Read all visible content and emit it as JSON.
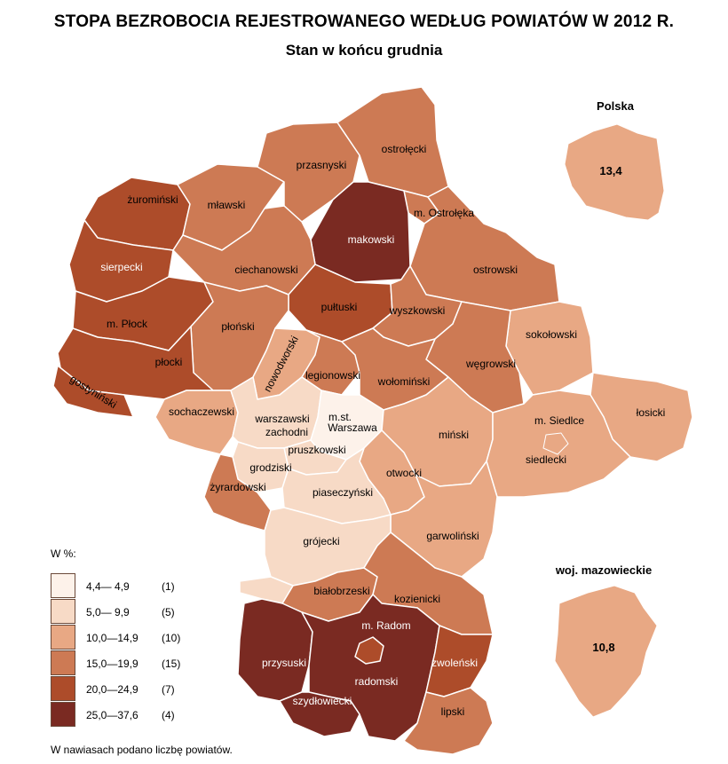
{
  "title": "STOPA BEZROBOCIA REJESTROWANEGO WEDŁUG POWIATÓW W 2012 R.",
  "subtitle": "Stan w końcu grudnia",
  "colors": {
    "c1": "#fdf2ea",
    "c2": "#f7dac6",
    "c3": "#e8a884",
    "c4": "#cd7a54",
    "c5": "#ad4c2a",
    "c6": "#7a2a22",
    "border": "#ffffff"
  },
  "inset_poland": {
    "title": "Polska",
    "value": "13,4"
  },
  "inset_mazowieckie": {
    "title": "woj. mazowieckie",
    "value": "10,8"
  },
  "legend": {
    "title": "W %:",
    "items": [
      {
        "range": "4,4— 4,9",
        "count": "(1)",
        "color": "#fdf2ea"
      },
      {
        "range": "5,0— 9,9",
        "count": "(5)",
        "color": "#f7dac6"
      },
      {
        "range": "10,0—14,9",
        "count": "(10)",
        "color": "#e8a884"
      },
      {
        "range": "15,0—19,9",
        "count": "(15)",
        "color": "#cd7a54"
      },
      {
        "range": "20,0—24,9",
        "count": "(7)",
        "color": "#ad4c2a"
      },
      {
        "range": "25,0—37,6",
        "count": "(4)",
        "color": "#7a2a22"
      }
    ]
  },
  "footnote": "W nawiasach podano liczbę powiatów.",
  "regions": {
    "zurominski": "żuromiński",
    "mlawski": "mławski",
    "przasnyski": "przasnyski",
    "ostrolecki": "ostrołęcki",
    "m_ostroleka": "m. Ostrołęka",
    "makowski": "makowski",
    "sierpecki": "sierpecki",
    "ciechanowski": "ciechanowski",
    "ostrowski": "ostrowski",
    "pultuski": "pułtuski",
    "wyszkowski": "wyszkowski",
    "m_plock": "m. Płock",
    "plonski": "płoński",
    "plocki": "płocki",
    "sokolowski": "sokołowski",
    "nowodworski": "nowodworski",
    "legionowski": "legionowski",
    "wegrowski": "węgrowski",
    "wolominski": "wołomiński",
    "gostyninski": "gostyniński",
    "sochaczewski": "sochaczewski",
    "warszawski_zachodni_1": "warszawski",
    "warszawski_zachodni_2": "zachodni",
    "m_st_warszawa_1": "m.st.",
    "m_st_warszawa_2": "Warszawa",
    "m_siedlce": "m. Siedlce",
    "losicki": "łosicki",
    "minski": "miński",
    "pruszkowski": "pruszkowski",
    "grodziski": "grodziski",
    "otwocki": "otwocki",
    "siedlecki": "siedlecki",
    "zyrardowski": "żyrardowski",
    "piaseczynski": "piaseczyński",
    "garwolinski": "garwoliński",
    "grojecki": "grójecki",
    "bialobrzeski": "białobrzeski",
    "kozienicki": "kozienicki",
    "m_radom": "m. Radom",
    "przysuski": "przysuski",
    "zwolenski": "zwoleński",
    "radomski": "radomski",
    "szydlowiecki": "szydłowiecki",
    "lipski": "lipski"
  }
}
